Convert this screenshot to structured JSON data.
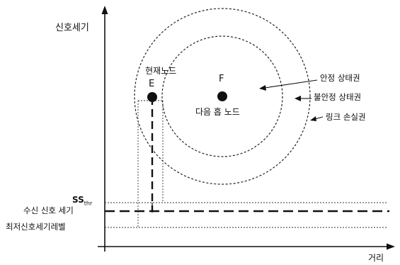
{
  "axes": {
    "y_label": "신호세기",
    "x_label": "거리"
  },
  "nodes": {
    "current": {
      "letter": "E",
      "caption": "현재노드"
    },
    "next": {
      "letter": "F",
      "caption": "다음 홉 노드"
    }
  },
  "zones": {
    "stable": "안정 상태권",
    "unstable": "불안정 상태권",
    "loss": "링크 손실권"
  },
  "levels": {
    "ss_thr_main": "SS",
    "ss_thr_sub": "thr",
    "received": "수신 신호 세기",
    "minimum": "최저신호세기레벨"
  }
}
